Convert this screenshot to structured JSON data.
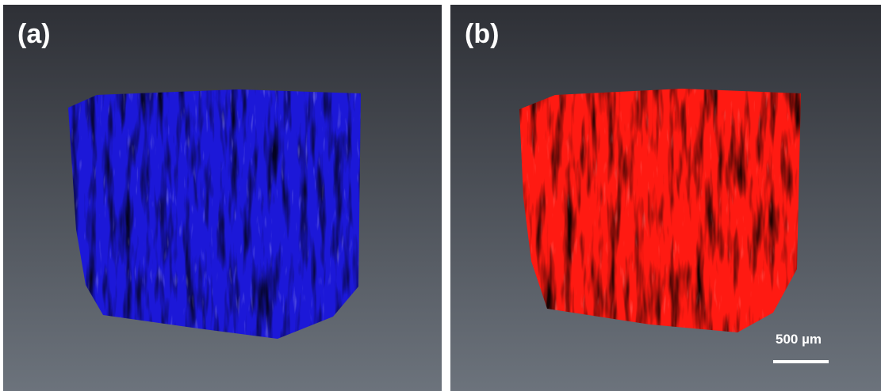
{
  "panels": [
    {
      "label": "(a)"
    },
    {
      "label": "(b)",
      "scale_bar": "500 µm"
    }
  ]
}
